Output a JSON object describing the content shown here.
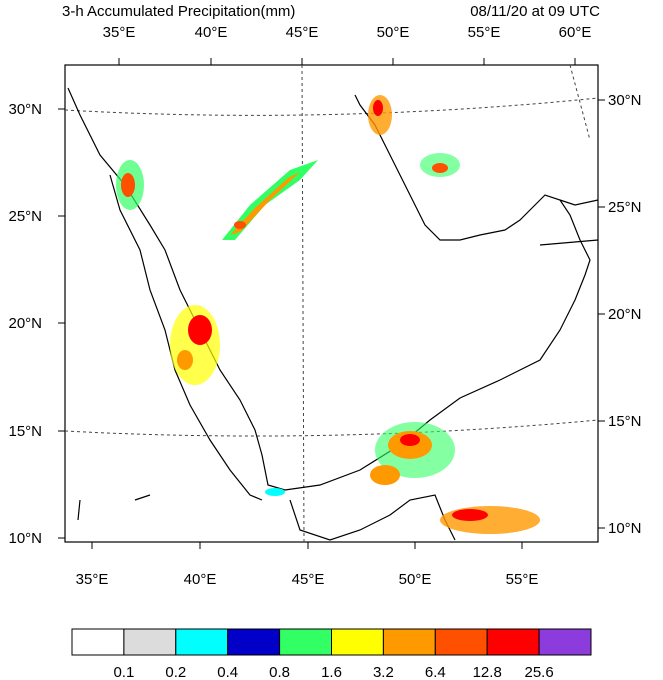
{
  "header": {
    "title": "3-h Accumulated Precipitation(mm)",
    "time": "08/11/20 at 09 UTC"
  },
  "map": {
    "top_labels": [
      "35°E",
      "40°E",
      "45°E",
      "50°E",
      "55°E",
      "60°E"
    ],
    "bottom_labels": [
      "35°E",
      "40°E",
      "45°E",
      "50°E",
      "55°E"
    ],
    "left_labels": [
      "30°N",
      "25°N",
      "20°N",
      "15°N",
      "10°N"
    ],
    "right_labels": [
      "30°N",
      "25°N",
      "20°N",
      "15°N",
      "10°N"
    ]
  },
  "colorbar": {
    "colors": [
      "#ffffff",
      "#dcdcdc",
      "#00ffff",
      "#0000c8",
      "#32ff64",
      "#ffff00",
      "#ff9900",
      "#ff5000",
      "#ff0000",
      "#8c3cdc"
    ],
    "labels": [
      0.1,
      0.2,
      0.4,
      0.8,
      1.6,
      3.2,
      6.4,
      12.8,
      25.6
    ]
  }
}
